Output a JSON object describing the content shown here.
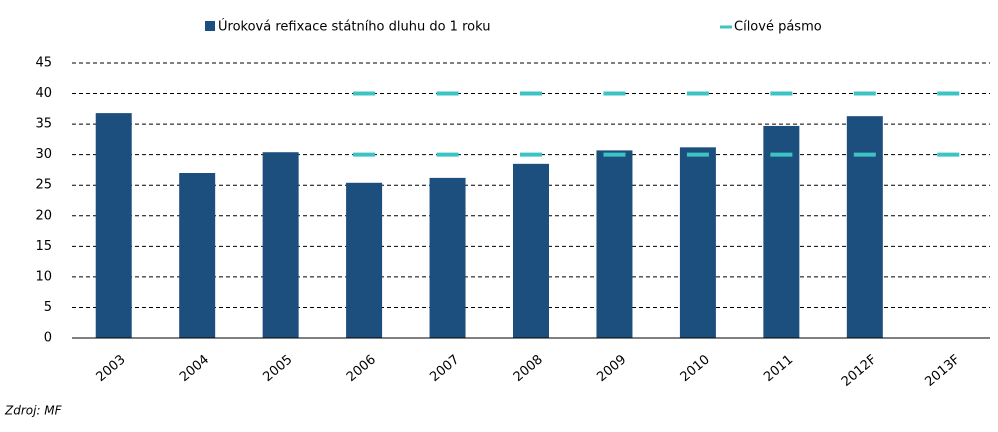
{
  "chart_data": {
    "type": "bar",
    "categories": [
      "2003",
      "2004",
      "2005",
      "2006",
      "2007",
      "2008",
      "2009",
      "2010",
      "2011",
      "2012F",
      "2013F"
    ],
    "series": [
      {
        "name": "Úroková refixace státního dluhu do 1 roku",
        "color": "#1d4f7e",
        "values": [
          36.8,
          27,
          30.4,
          25.4,
          26.2,
          28.5,
          30.7,
          31.2,
          34.7,
          36.3,
          null
        ]
      }
    ],
    "target": {
      "name": "Cílové pásmo",
      "color": "#3cc4c4",
      "lower": [
        null,
        null,
        null,
        30,
        30,
        30,
        30,
        30,
        30,
        30,
        30
      ],
      "upper": [
        null,
        null,
        null,
        40,
        40,
        40,
        40,
        40,
        40,
        40,
        40
      ]
    },
    "ylim": [
      0,
      45
    ],
    "yticks": [
      0,
      5,
      10,
      15,
      20,
      25,
      30,
      35,
      40,
      45
    ],
    "grid": true,
    "source": "Zdroj: MF"
  }
}
